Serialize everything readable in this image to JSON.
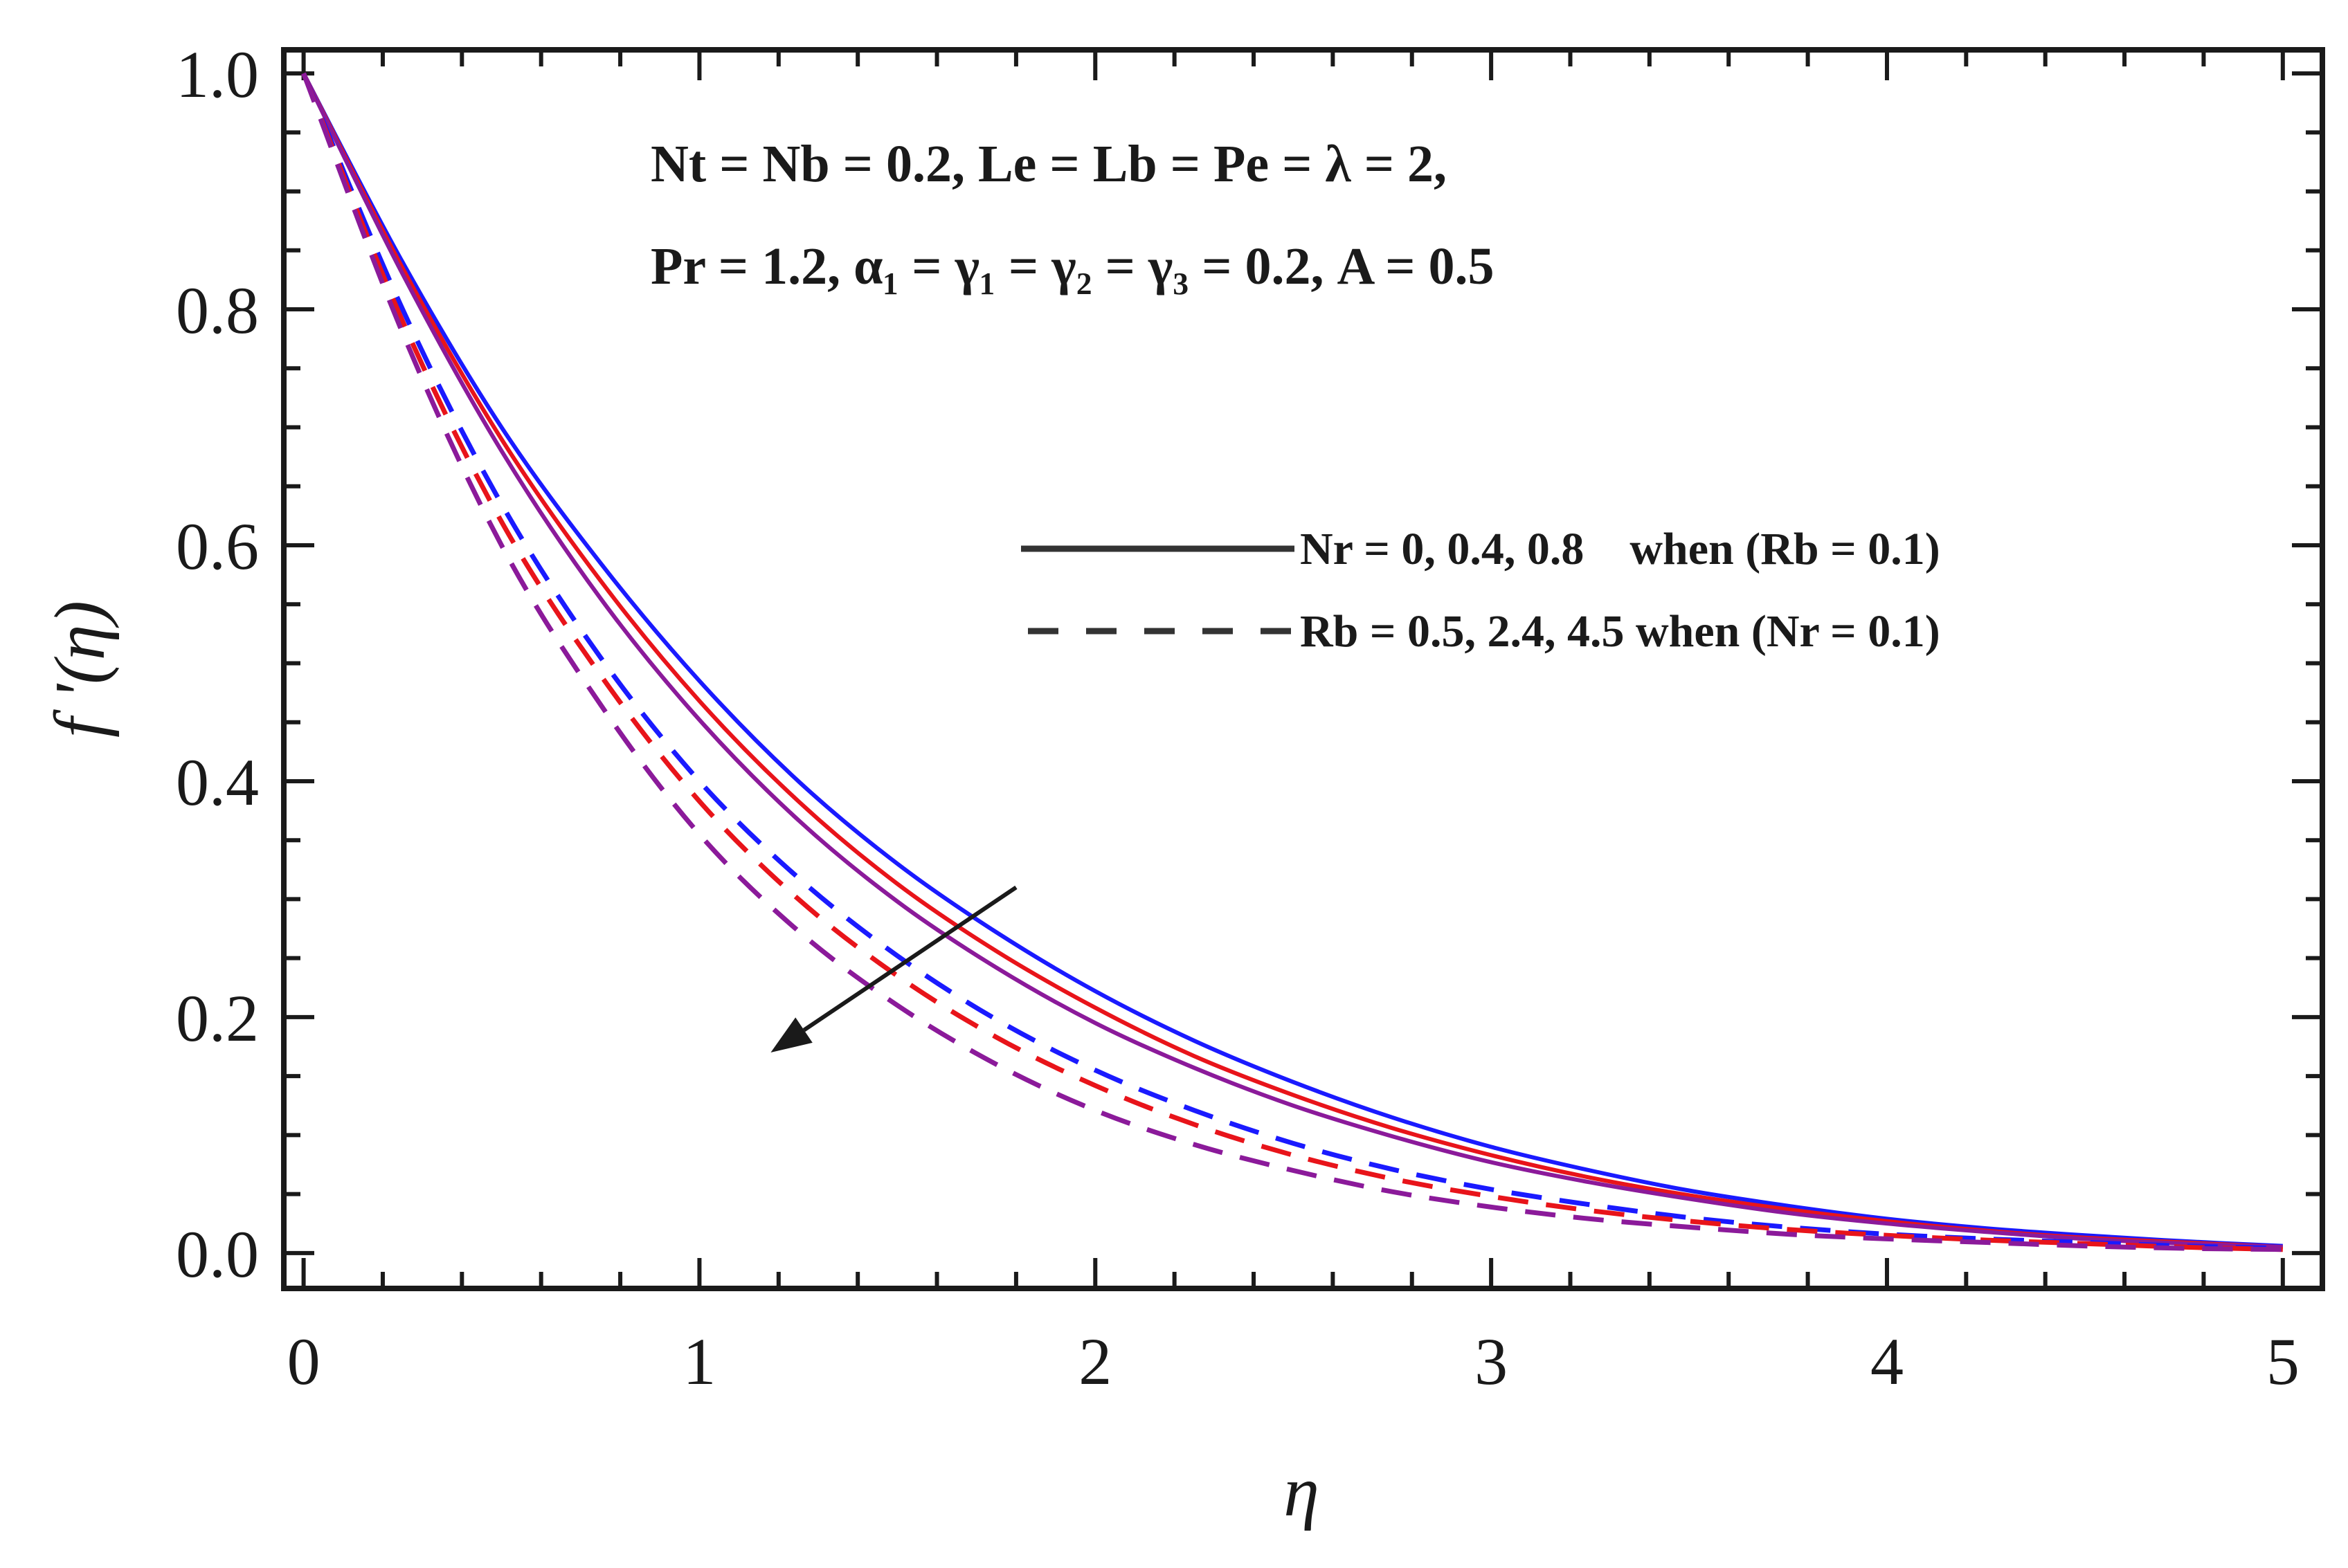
{
  "chart_data": {
    "type": "line",
    "title": "",
    "xlabel": "η",
    "ylabel": "f '(η)",
    "xlim": [
      -0.05,
      5.1
    ],
    "ylim": [
      -0.03,
      1.02
    ],
    "xticks": [
      0,
      1,
      2,
      3,
      4,
      5
    ],
    "xtick_labels": [
      "0",
      "1",
      "2",
      "3",
      "4",
      "5"
    ],
    "yticks": [
      0.0,
      0.2,
      0.4,
      0.6,
      0.8,
      1.0
    ],
    "ytick_labels": [
      "0.0",
      "0.2",
      "0.4",
      "0.6",
      "0.8",
      "1.0"
    ],
    "grid": false,
    "legend_position": "right-center",
    "annotations": [
      "Nt = Nb = 0.2, Le = Lb = Pe = λ = 2,",
      "Pr = 1.2, α₁ = γ₁ = γ₂ = γ₃ = 0.2, A = 0.5"
    ],
    "legend": [
      {
        "style": "solid",
        "label": "Nr = 0, 0.4, 0.8    when (Rb = 0.1)"
      },
      {
        "style": "dashed",
        "label": "Rb = 0.5, 2.4, 4.5 when (Nr = 0.1)"
      }
    ],
    "x": [
      0,
      0.25,
      0.5,
      0.75,
      1.0,
      1.25,
      1.5,
      1.75,
      2.0,
      2.25,
      2.5,
      2.75,
      3.0,
      3.25,
      3.5,
      3.75,
      4.0,
      4.25,
      4.5,
      4.75,
      5.0
    ],
    "series": [
      {
        "style": "solid",
        "color": "#1a1aff",
        "values": [
          1.0,
          0.84,
          0.7,
          0.585,
          0.485,
          0.4,
          0.33,
          0.272,
          0.222,
          0.18,
          0.145,
          0.115,
          0.09,
          0.07,
          0.053,
          0.04,
          0.029,
          0.021,
          0.015,
          0.01,
          0.006
        ]
      },
      {
        "style": "solid",
        "color": "#e8141a",
        "values": [
          1.0,
          0.835,
          0.69,
          0.57,
          0.468,
          0.383,
          0.313,
          0.256,
          0.208,
          0.167,
          0.134,
          0.106,
          0.083,
          0.064,
          0.049,
          0.037,
          0.027,
          0.019,
          0.013,
          0.009,
          0.005
        ]
      },
      {
        "style": "solid",
        "color": "#8b1a9a",
        "values": [
          1.0,
          0.83,
          0.68,
          0.555,
          0.452,
          0.367,
          0.298,
          0.242,
          0.195,
          0.157,
          0.125,
          0.099,
          0.077,
          0.06,
          0.046,
          0.034,
          0.025,
          0.018,
          0.012,
          0.008,
          0.005
        ]
      },
      {
        "style": "dashed",
        "color": "#1a1aff",
        "values": [
          1.0,
          0.8,
          0.635,
          0.505,
          0.4,
          0.318,
          0.252,
          0.198,
          0.155,
          0.121,
          0.093,
          0.071,
          0.054,
          0.041,
          0.03,
          0.022,
          0.016,
          0.012,
          0.009,
          0.006,
          0.004
        ]
      },
      {
        "style": "dashed",
        "color": "#e8141a",
        "values": [
          1.0,
          0.79,
          0.62,
          0.49,
          0.383,
          0.3,
          0.235,
          0.183,
          0.142,
          0.109,
          0.083,
          0.063,
          0.048,
          0.036,
          0.027,
          0.02,
          0.015,
          0.011,
          0.008,
          0.005,
          0.003
        ]
      },
      {
        "style": "dashed",
        "color": "#8b1a9a",
        "values": [
          1.0,
          0.78,
          0.6,
          0.465,
          0.355,
          0.273,
          0.21,
          0.16,
          0.121,
          0.092,
          0.07,
          0.052,
          0.039,
          0.029,
          0.022,
          0.016,
          0.012,
          0.009,
          0.006,
          0.004,
          0.003
        ]
      }
    ],
    "arrow": {
      "from": [
        1.8,
        0.31
      ],
      "to": [
        1.18,
        0.17
      ],
      "meaning": "increasing Nr and Rb"
    }
  }
}
